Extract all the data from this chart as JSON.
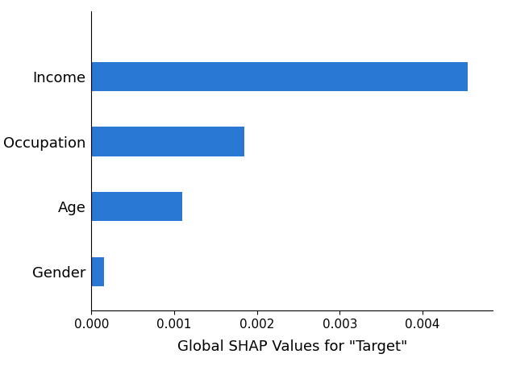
{
  "features": [
    "Gender",
    "Age",
    "Occupation",
    "Income"
  ],
  "values": [
    0.000148,
    0.0011,
    0.00185,
    0.00455
  ],
  "bar_color": "#2878d4",
  "xlabel": "Global SHAP Values for \"Target\"",
  "xlabel_fontsize": 13,
  "ytick_fontsize": 13,
  "xtick_fontsize": 11,
  "bar_height": 0.45,
  "xlim": [
    0,
    0.00485
  ],
  "background_color": "#ffffff"
}
